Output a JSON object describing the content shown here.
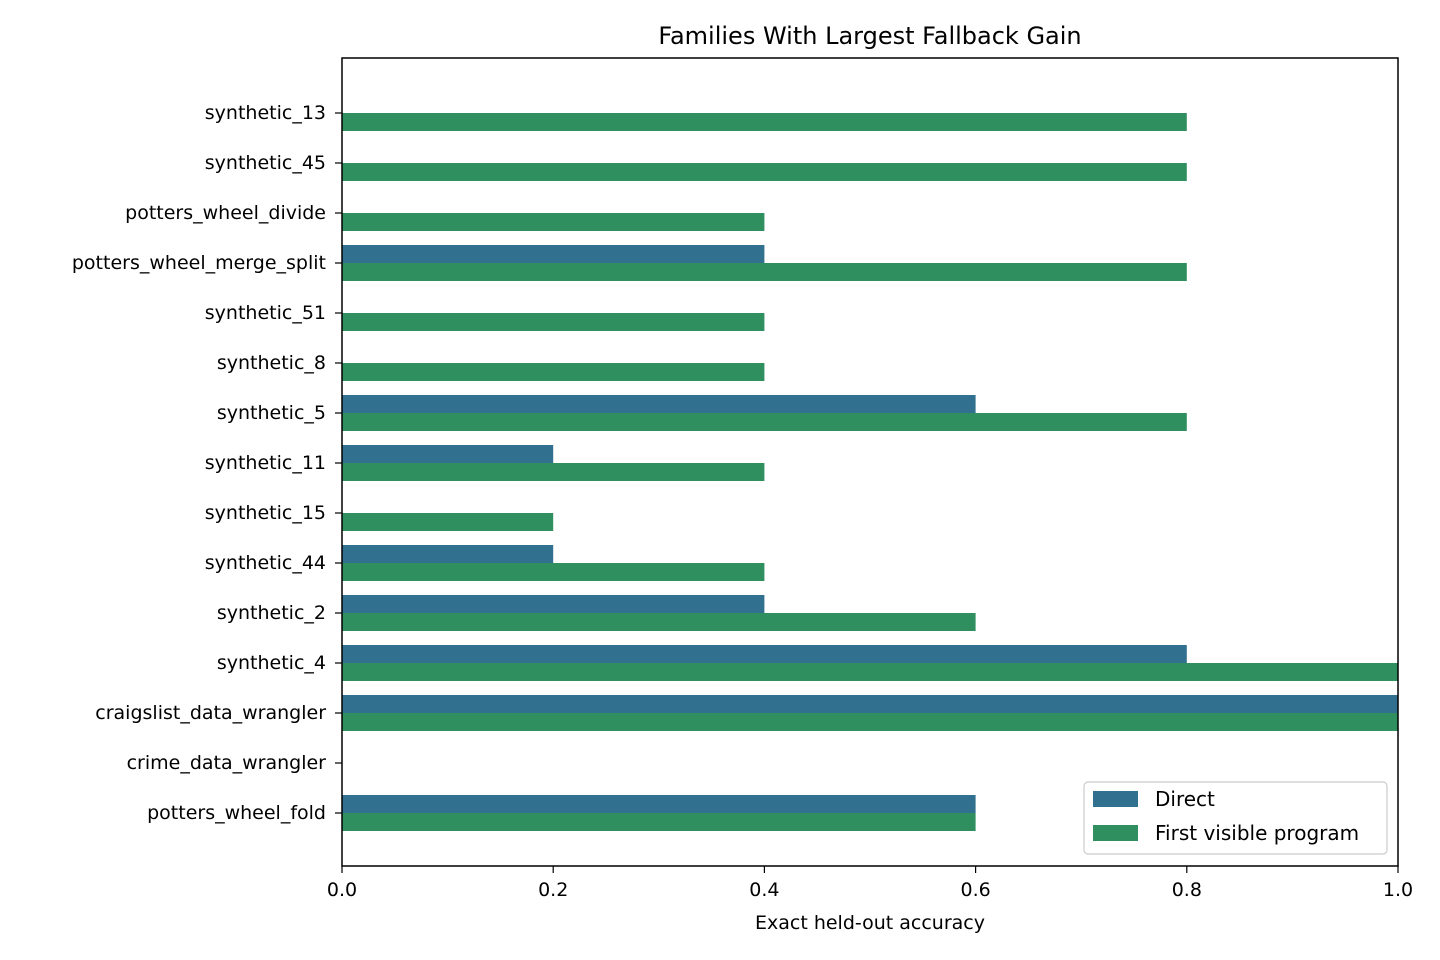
{
  "chart_data": {
    "type": "bar",
    "orientation": "horizontal",
    "title": "Families With Largest Fallback Gain",
    "xlabel": "Exact held-out accuracy",
    "ylabel": "",
    "xlim": [
      0.0,
      1.0
    ],
    "xticks": [
      "0.0",
      "0.2",
      "0.4",
      "0.6",
      "0.8",
      "1.0"
    ],
    "grid": false,
    "legend_position": "lower-right",
    "categories": [
      "synthetic_13",
      "synthetic_45",
      "potters_wheel_divide",
      "potters_wheel_merge_split",
      "synthetic_51",
      "synthetic_8",
      "synthetic_5",
      "synthetic_11",
      "synthetic_15",
      "synthetic_44",
      "synthetic_2",
      "synthetic_4",
      "craigslist_data_wrangler",
      "crime_data_wrangler",
      "potters_wheel_fold"
    ],
    "series": [
      {
        "name": "Direct",
        "color": "#31708e",
        "values": [
          0.0,
          0.0,
          0.0,
          0.4,
          0.0,
          0.0,
          0.6,
          0.2,
          0.0,
          0.2,
          0.4,
          0.8,
          1.0,
          0.0,
          0.6
        ]
      },
      {
        "name": "First visible program",
        "color": "#2f8f5e",
        "values": [
          0.8,
          0.8,
          0.4,
          0.8,
          0.4,
          0.4,
          0.8,
          0.4,
          0.2,
          0.4,
          0.6,
          1.0,
          1.0,
          0.0,
          0.6
        ]
      }
    ]
  }
}
